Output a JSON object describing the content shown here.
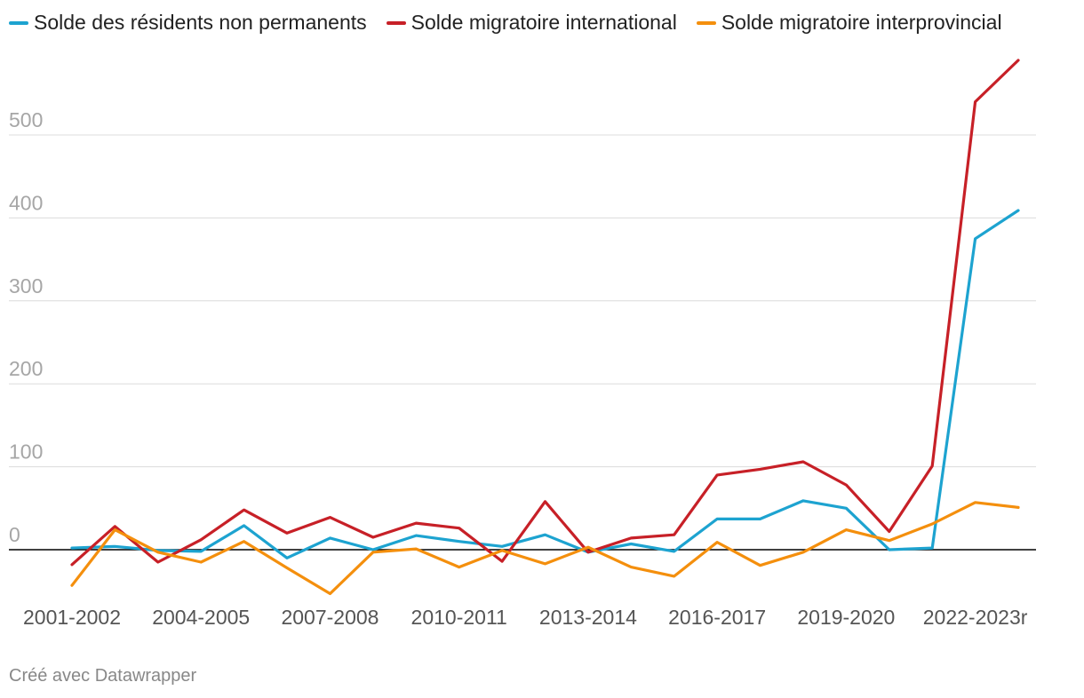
{
  "chart_data": {
    "type": "line",
    "title": "",
    "xlabel": "",
    "ylabel": "",
    "x": [
      "2001-2002",
      "2002-2003",
      "2003-2004",
      "2004-2005",
      "2005-2006",
      "2006-2007",
      "2007-2008",
      "2008-2009",
      "2009-2010",
      "2010-2011",
      "2011-2012",
      "2012-2013",
      "2013-2014",
      "2014-2015",
      "2015-2016",
      "2016-2017",
      "2017-2018",
      "2018-2019",
      "2019-2020",
      "2020-2021",
      "2021-2022",
      "2022-2023r",
      "2023-2024"
    ],
    "x_tick_labels": [
      "2001-2002",
      "2004-2005",
      "2007-2008",
      "2010-2011",
      "2013-2014",
      "2016-2017",
      "2019-2020",
      "2022-2023r"
    ],
    "y_ticks": [
      0,
      100,
      200,
      300,
      400,
      500
    ],
    "ylim": [
      -75,
      590
    ],
    "grid": true,
    "legend_position": "top-left",
    "zero_line": true,
    "series": [
      {
        "name": "Solde des résidents non permanents",
        "color": "#1da3d0",
        "values": [
          2,
          4,
          -1,
          -2,
          29,
          -10,
          14,
          0,
          17,
          10,
          4,
          18,
          -3,
          7,
          -2,
          37,
          37,
          59,
          50,
          0,
          2,
          375,
          409
        ]
      },
      {
        "name": "Solde migratoire international",
        "color": "#c72027",
        "values": [
          -18,
          28,
          -15,
          12,
          48,
          20,
          39,
          15,
          32,
          26,
          -14,
          58,
          -3,
          14,
          18,
          90,
          97,
          106,
          78,
          22,
          101,
          540,
          590
        ]
      },
      {
        "name": "Solde migratoire interprovincial",
        "color": "#f48f0d",
        "values": [
          -43,
          24,
          -3,
          -15,
          10,
          -22,
          -53,
          -3,
          1,
          -21,
          -1,
          -17,
          3,
          -21,
          -32,
          9,
          -19,
          -3,
          24,
          11,
          31,
          57,
          51
        ]
      }
    ]
  },
  "footer": {
    "credit": "Créé avec Datawrapper"
  }
}
